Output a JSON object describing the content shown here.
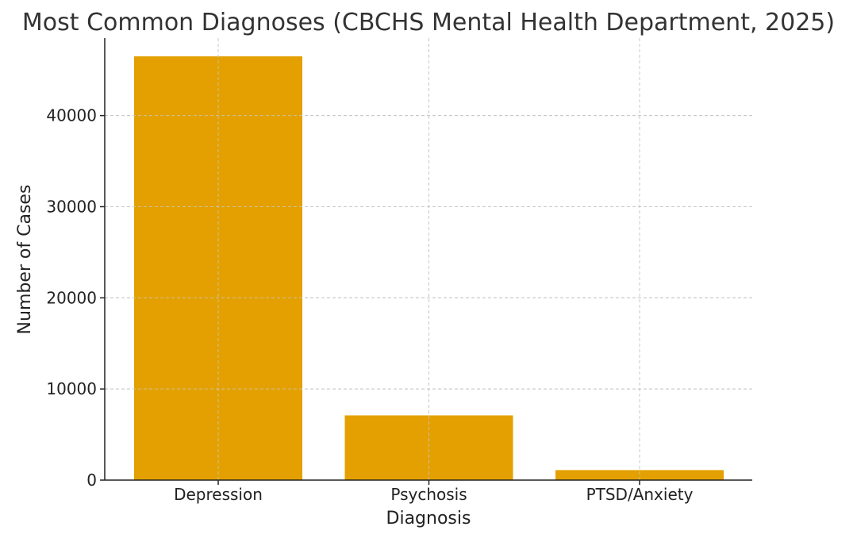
{
  "chart_data": {
    "type": "bar",
    "title": "Most Common Diagnoses (CBCHS Mental Health Department, 2025)",
    "xlabel": "Diagnosis",
    "ylabel": "Number of Cases",
    "categories": [
      "Depression",
      "Psychosis",
      "PTSD/Anxiety"
    ],
    "values": [
      46500,
      7100,
      1100
    ],
    "ylim": [
      0,
      48500
    ],
    "yticks": [
      0,
      10000,
      20000,
      30000,
      40000
    ],
    "grid": true,
    "bar_color": "#E3A000"
  }
}
